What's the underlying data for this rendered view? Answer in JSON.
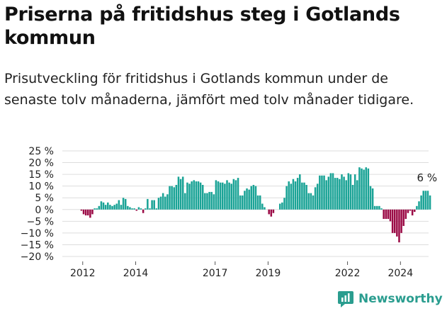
{
  "title": "Priserna på fritidshus steg i Gotlands kommun",
  "subtitle": "Prisutveckling för fritidshus i Gotlands kommun under de senaste tolv månaderna, jämfört med tolv månader tidigare.",
  "brand": {
    "name": "Newsworthy",
    "icon": "newsworthy-logo-icon"
  },
  "colors": {
    "positive": "#1aa396",
    "negative": "#9b0b46",
    "grid": "#dddddd",
    "brand": "#2a9d8f"
  },
  "chart_data": {
    "type": "bar",
    "ylabel": "",
    "xlabel": "",
    "ylim": [
      -20,
      25
    ],
    "yticks": [
      "25 %",
      "20 %",
      "15 %",
      "10 %",
      "5 %",
      "0 %",
      "−5 %",
      "−10 %",
      "−15 %",
      "−20 %"
    ],
    "ytick_values": [
      25,
      20,
      15,
      10,
      5,
      0,
      -5,
      -10,
      -15,
      -20
    ],
    "xticks": [
      "2012",
      "2014",
      "2017",
      "2019",
      "2022",
      "2024"
    ],
    "xtick_months": [
      24,
      48,
      84,
      108,
      144,
      168
    ],
    "grid": true,
    "annotation": "6 %",
    "start": "2011-01",
    "values": [
      0,
      0,
      0,
      0,
      0,
      0,
      0,
      0,
      0,
      0,
      0,
      0,
      0,
      0,
      0,
      0,
      0,
      0,
      0,
      0,
      0,
      0,
      0,
      -0.5,
      -2,
      -2.5,
      -2.5,
      -3.5,
      -2,
      0.5,
      0.5,
      1.5,
      3.5,
      3,
      2,
      3,
      2,
      1.5,
      2,
      2.5,
      4,
      2,
      5,
      4.5,
      1.5,
      1,
      0.5,
      0.5,
      -0.5,
      1,
      0.5,
      -1.5,
      0.5,
      4.5,
      0.5,
      4,
      4,
      0.5,
      5,
      5.5,
      7,
      5.5,
      6.5,
      10,
      10,
      9.5,
      10.5,
      14,
      13,
      14,
      7,
      11.5,
      11,
      12,
      12.5,
      12,
      12,
      11.5,
      10.5,
      7,
      7,
      7.5,
      7.5,
      6.5,
      12.5,
      12,
      11.5,
      11.5,
      11,
      12.5,
      11.5,
      11,
      13,
      12.5,
      13.5,
      6,
      6,
      8,
      9,
      8.5,
      10,
      10.5,
      10,
      6,
      6,
      2.5,
      1,
      0,
      -2,
      -3,
      -1.5,
      0,
      0,
      2.5,
      3,
      5,
      10,
      12,
      11,
      13,
      12,
      13.5,
      15,
      11.5,
      11.5,
      10.5,
      7,
      7,
      6,
      9.5,
      11,
      14.5,
      14.5,
      14.5,
      12.5,
      14,
      15.5,
      15.5,
      13.5,
      13.5,
      13,
      15,
      14,
      12.5,
      15.5,
      15,
      10.5,
      15,
      12.5,
      18,
      17.5,
      17,
      18,
      17.5,
      10,
      9,
      1.5,
      1.5,
      1.5,
      0.5,
      -4,
      -4,
      -4,
      -5,
      -10,
      -10,
      -11.5,
      -14,
      -10,
      -7,
      -4,
      -1.5,
      -0.5,
      -2.5,
      -1,
      1.5,
      3.5,
      6,
      8,
      8,
      8,
      6
    ]
  }
}
